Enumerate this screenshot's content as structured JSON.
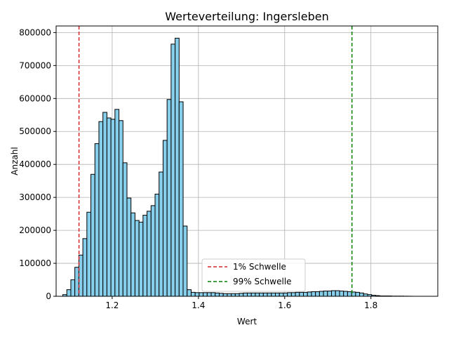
{
  "chart_data": {
    "type": "bar",
    "title": "Werteverteilung: Ingersleben",
    "xlabel": "Wert",
    "ylabel": "Anzahl",
    "xlim": [
      1.07,
      1.955
    ],
    "ylim": [
      0,
      820000
    ],
    "xticks": [
      1.2,
      1.4,
      1.6,
      1.8
    ],
    "xtick_labels": [
      "1.2",
      "1.4",
      "1.6",
      "1.8"
    ],
    "yticks": [
      0,
      100000,
      200000,
      300000,
      400000,
      500000,
      600000,
      700000,
      800000
    ],
    "ytick_labels": [
      "0",
      "100000",
      "200000",
      "300000",
      "400000",
      "500000",
      "600000",
      "700000",
      "800000"
    ],
    "grid": true,
    "bar_color": "#87ceeb",
    "edge_color": "#000000",
    "bin_start": 1.0855,
    "bin_width": 0.0093,
    "values": [
      5000,
      20000,
      50000,
      88000,
      125000,
      175000,
      255000,
      370000,
      463000,
      530000,
      558000,
      541000,
      537000,
      567000,
      533000,
      405000,
      298000,
      253000,
      230000,
      225000,
      246000,
      258000,
      275000,
      310000,
      377000,
      473000,
      597000,
      765000,
      783000,
      590000,
      213000,
      20000,
      12000,
      11000,
      11000,
      11000,
      11000,
      11000,
      10000,
      9000,
      8000,
      8000,
      8000,
      8000,
      9000,
      10000,
      10000,
      10000,
      10000,
      10000,
      10000,
      10000,
      10000,
      10000,
      10000,
      10000,
      11000,
      11000,
      12000,
      12000,
      12000,
      13000,
      14000,
      14000,
      15000,
      16000,
      16000,
      17000,
      17000,
      16000,
      15000,
      14000,
      13000,
      12000,
      10000,
      7000,
      5000,
      3000,
      2000,
      1000,
      1000,
      1000,
      500,
      500,
      500,
      300,
      200
    ],
    "thresholds": [
      {
        "name": "1% Schwelle",
        "value": 1.123,
        "color": "#d62728"
      },
      {
        "name": "99% Schwelle",
        "value": 1.756,
        "color": "#008000"
      }
    ],
    "legend_position": "lower-center"
  }
}
